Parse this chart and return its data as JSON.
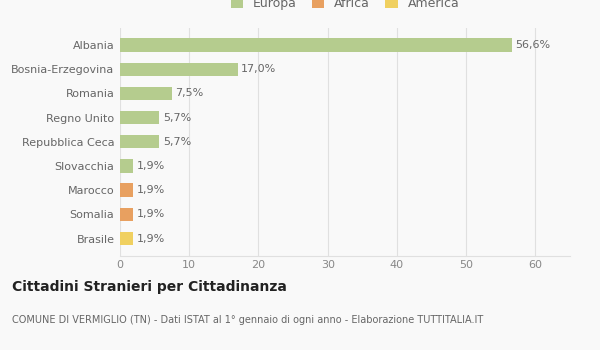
{
  "categories": [
    "Brasile",
    "Somalia",
    "Marocco",
    "Slovacchia",
    "Repubblica Ceca",
    "Regno Unito",
    "Romania",
    "Bosnia-Erzegovina",
    "Albania"
  ],
  "values": [
    1.9,
    1.9,
    1.9,
    1.9,
    5.7,
    5.7,
    7.5,
    17.0,
    56.6
  ],
  "labels": [
    "1,9%",
    "1,9%",
    "1,9%",
    "1,9%",
    "5,7%",
    "5,7%",
    "7,5%",
    "17,0%",
    "56,6%"
  ],
  "colors": [
    "#f0d060",
    "#e8a060",
    "#e8a060",
    "#b5cc8e",
    "#b5cc8e",
    "#b5cc8e",
    "#b5cc8e",
    "#b5cc8e",
    "#b5cc8e"
  ],
  "legend_labels": [
    "Europa",
    "Africa",
    "America"
  ],
  "legend_colors": [
    "#b5cc8e",
    "#e8a060",
    "#f0d060"
  ],
  "title": "Cittadini Stranieri per Cittadinanza",
  "subtitle": "COMUNE DI VERMIGLIO (TN) - Dati ISTAT al 1° gennaio di ogni anno - Elaborazione TUTTITALIA.IT",
  "xlim": [
    0,
    65
  ],
  "xticks": [
    0,
    10,
    20,
    30,
    40,
    50,
    60
  ],
  "bg_color": "#f9f9f9",
  "grid_color": "#e0e0e0"
}
